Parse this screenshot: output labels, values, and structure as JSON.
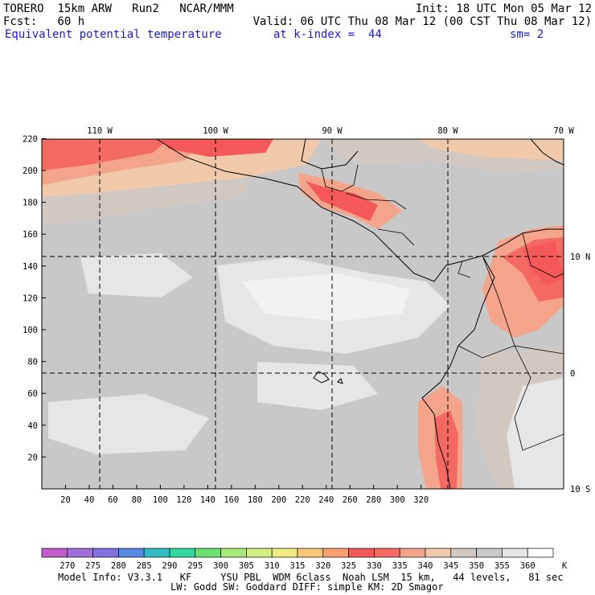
{
  "header": {
    "model": "TORERO",
    "resolution": "15km ARW",
    "run": "Run2",
    "org": "NCAR/MMM",
    "init": "Init: 18 UTC Mon 05 Mar 12",
    "fcst_label": "Fcst:",
    "fcst_value": "60 h",
    "valid": "Valid: 06 UTC Thu 08 Mar 12 (00 CST Thu 08 Mar 12)",
    "field": "Equivalent potential temperature",
    "kindex": "at k-index =  44",
    "sm": "sm= 2"
  },
  "map": {
    "lon_labels": [
      "110 W",
      "100 W",
      "90 W",
      "80 W",
      "70 W"
    ],
    "lat_labels": [
      "10 N",
      "0",
      "10 S"
    ],
    "y_ticks": [
      "20",
      "40",
      "60",
      "80",
      "100",
      "120",
      "140",
      "160",
      "180",
      "200",
      "220"
    ],
    "x_ticks": [
      "20",
      "40",
      "60",
      "80",
      "100",
      "120",
      "140",
      "160",
      "180",
      "200",
      "220",
      "240",
      "260",
      "280",
      "300",
      "320"
    ]
  },
  "colorbar": {
    "labels": [
      "270",
      "275",
      "280",
      "285",
      "290",
      "295",
      "300",
      "305",
      "310",
      "315",
      "320",
      "325",
      "330",
      "335",
      "340",
      "345",
      "350",
      "355",
      "360"
    ],
    "unit": "K",
    "colors": [
      "#c25ccc",
      "#a070d8",
      "#8070e0",
      "#5a88e6",
      "#30bcc2",
      "#30d8a0",
      "#6ce070",
      "#a8e878",
      "#d2ee80",
      "#f0ee80",
      "#f8c878",
      "#f8a070",
      "#f45858",
      "#f46a62",
      "#f4a48a",
      "#f0c8aa",
      "#d2c8c2",
      "#c8c8c8",
      "#e6e6e6",
      "#ffffff"
    ]
  },
  "footer": {
    "line1": "Model Info: V3.3.1   KF     YSU PBL  WDM 6class  Noah LSM  15 km,   44 levels,   81 sec",
    "line2": "LW: Godd SW: Goddard DIFF: simple KM: 2D Smagor"
  }
}
